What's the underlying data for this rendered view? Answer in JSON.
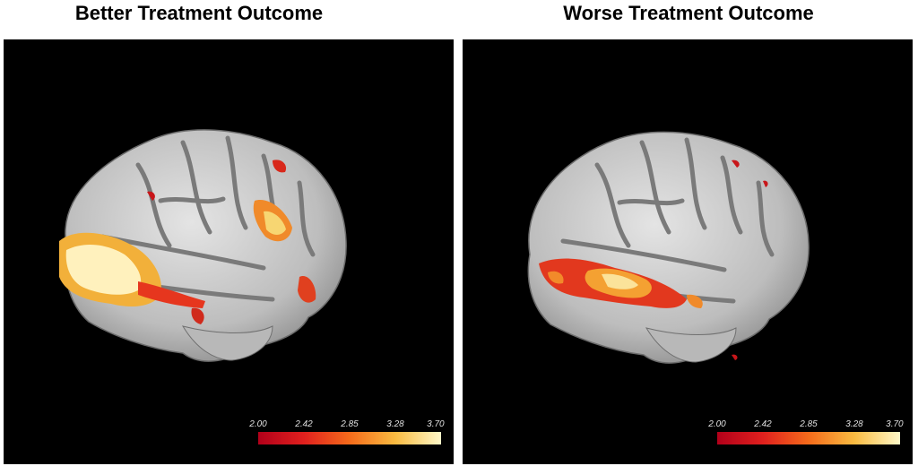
{
  "panels": [
    {
      "title": "Better Treatment Outcome",
      "colorbar": {
        "ticks": [
          "2.00",
          "2.42",
          "2.85",
          "3.28",
          "3.70"
        ],
        "min": 2.0,
        "max": 3.7
      }
    },
    {
      "title": "Worse Treatment Outcome",
      "colorbar": {
        "ticks": [
          "2.00",
          "2.42",
          "2.85",
          "3.28",
          "3.70"
        ],
        "min": 2.0,
        "max": 3.7
      }
    }
  ],
  "colors": {
    "background": "#000000",
    "cortex": "#c8c8c8",
    "sulcus": "#7a7a7a",
    "activation_low": "#b2001a",
    "activation_high": "#fff8c8"
  }
}
